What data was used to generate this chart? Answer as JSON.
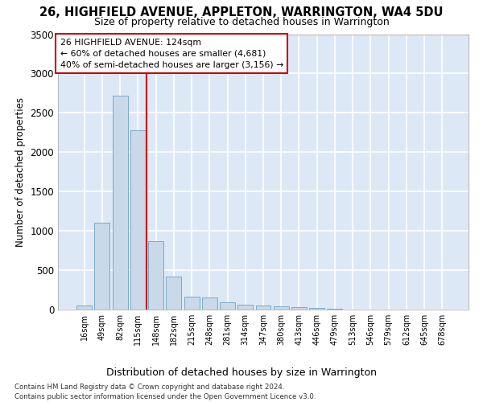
{
  "title": "26, HIGHFIELD AVENUE, APPLETON, WARRINGTON, WA4 5DU",
  "subtitle": "Size of property relative to detached houses in Warrington",
  "xlabel": "Distribution of detached houses by size in Warrington",
  "ylabel": "Number of detached properties",
  "bar_color": "#c9d9ea",
  "bar_edge_color": "#7aaac8",
  "background_color": "#dce8f5",
  "grid_color": "#ffffff",
  "vline_color": "#cc0000",
  "vline_x_index": 3,
  "categories": [
    "16sqm",
    "49sqm",
    "82sqm",
    "115sqm",
    "148sqm",
    "182sqm",
    "215sqm",
    "248sqm",
    "281sqm",
    "314sqm",
    "347sqm",
    "380sqm",
    "413sqm",
    "446sqm",
    "479sqm",
    "513sqm",
    "546sqm",
    "579sqm",
    "612sqm",
    "645sqm",
    "678sqm"
  ],
  "values": [
    55,
    1100,
    2720,
    2280,
    870,
    420,
    165,
    155,
    90,
    60,
    55,
    40,
    30,
    25,
    10,
    5,
    3,
    2,
    2,
    1,
    1
  ],
  "ylim": [
    0,
    3500
  ],
  "yticks": [
    0,
    500,
    1000,
    1500,
    2000,
    2500,
    3000,
    3500
  ],
  "annotation_title": "26 HIGHFIELD AVENUE: 124sqm",
  "annotation_line1": "← 60% of detached houses are smaller (4,681)",
  "annotation_line2": "40% of semi-detached houses are larger (3,156) →",
  "annotation_box_color": "#ffffff",
  "annotation_box_edge": "#cc0000",
  "footnote1": "Contains HM Land Registry data © Crown copyright and database right 2024.",
  "footnote2": "Contains public sector information licensed under the Open Government Licence v3.0."
}
